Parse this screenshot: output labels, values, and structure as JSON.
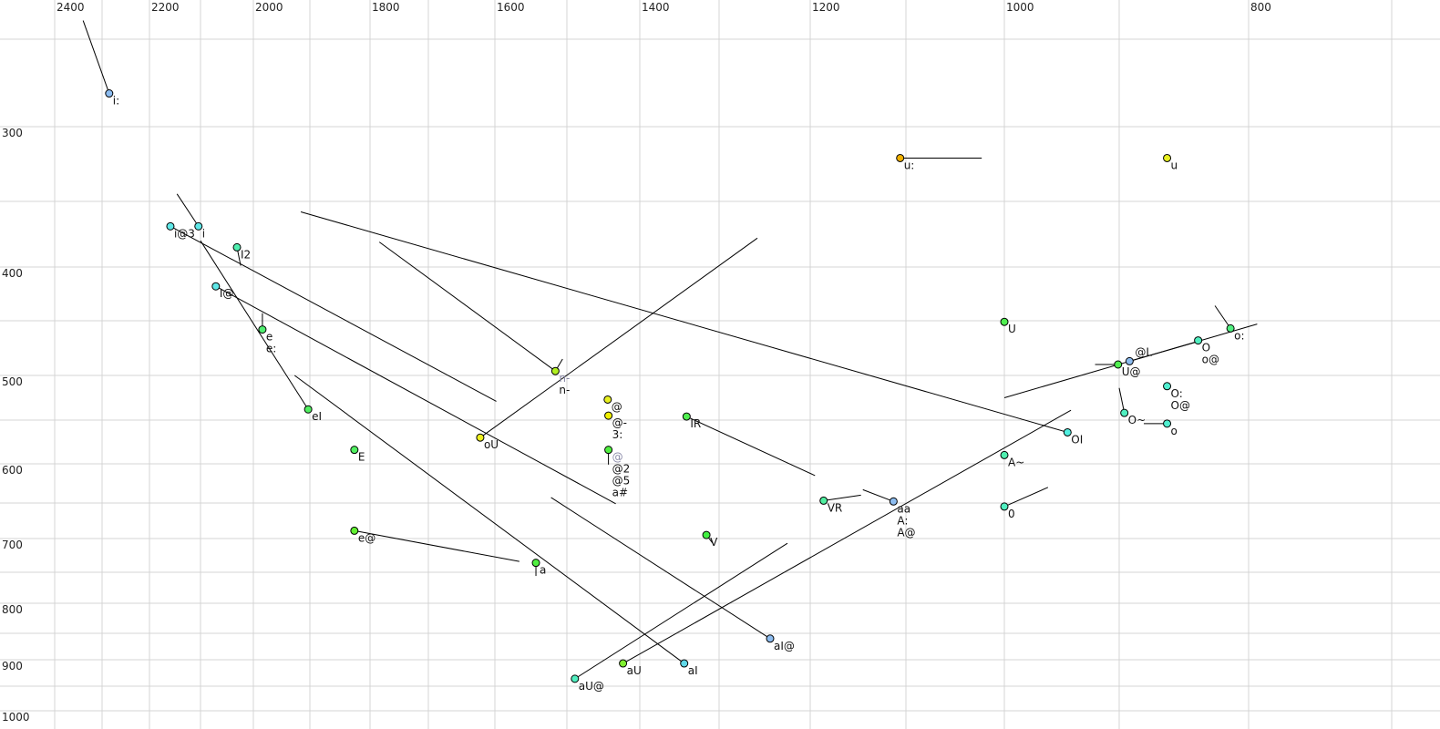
{
  "chart_data": {
    "type": "scatter",
    "title": "",
    "xlabel": "",
    "ylabel": "",
    "x_axis": {
      "ticks": [
        2400,
        2200,
        2000,
        1800,
        1600,
        1400,
        1200,
        1000,
        800
      ],
      "tick_labels": [
        "2400",
        "2200",
        "2000",
        "1800",
        "1600",
        "1400",
        "1200",
        "1000",
        "800"
      ],
      "range": [
        2400,
        700
      ],
      "reversed": true,
      "scale": "auditory (non-linear)",
      "position": "top",
      "minor_grid_step": 100
    },
    "y_axis": {
      "ticks": [
        300,
        400,
        500,
        600,
        700,
        800,
        900,
        1000
      ],
      "tick_labels": [
        "300",
        "400",
        "500",
        "600",
        "700",
        "800",
        "900",
        "1000"
      ],
      "range": [
        240,
        1000
      ],
      "reversed": true,
      "scale": "auditory (non-linear)",
      "minor_grid_step": 50
    },
    "grid": true,
    "legend": "none",
    "colors": {
      "light_blue": "#8cbcf0",
      "cyan": "#5fe8e8",
      "mint": "#50efb8",
      "green": "#50ef50",
      "yellow_green": "#b0ef20",
      "yellow": "#eef020",
      "orange": "#f0b000",
      "ghost_label": "#8a8aa8"
    },
    "points": [
      {
        "labels": [
          "i:"
        ],
        "f2": 2285,
        "f1": 281,
        "color": "#8cbcf0",
        "end": [
          2340,
          239
        ]
      },
      {
        "labels": [
          "i@3"
        ],
        "f2": 2159,
        "f1": 369,
        "color": "#5fe8e8",
        "end": [
          1598,
          529
        ]
      },
      {
        "labels": [
          "i"
        ],
        "f2": 2104,
        "f1": 369,
        "color": "#5fe8e8",
        "end": [
          2146,
          345
        ]
      },
      {
        "labels": [
          "I2"
        ],
        "f2": 2031,
        "f1": 385,
        "color": "#50efb0",
        "end": [
          2024,
          399
        ]
      },
      {
        "labels": [
          "I@"
        ],
        "f2": 2071,
        "f1": 418,
        "color": "#5fe8e8",
        "end": [
          1433,
          651
        ]
      },
      {
        "labels": [
          "e",
          "e:"
        ],
        "f2": 1984,
        "f1": 458,
        "color": "#50ef70",
        "end": [
          1984,
          443
        ]
      },
      {
        "labels": [
          "eI"
        ],
        "f2": 1903,
        "f1": 538,
        "color": "#50ef60",
        "end": [
          2100,
          380
        ]
      },
      {
        "labels": [
          "E"
        ],
        "f2": 1826,
        "f1": 584,
        "color": "#50ef60"
      },
      {
        "labels": [
          "e@"
        ],
        "f2": 1826,
        "f1": 689,
        "color": "#60ef30",
        "end": [
          1566,
          734
        ]
      },
      {
        "labels": [
          "a"
        ],
        "f2": 1543,
        "f1": 736,
        "color": "#50ef40",
        "end": [
          1543,
          756
        ]
      },
      {
        "labels": [
          "aI"
        ],
        "f2": 1344,
        "f1": 907,
        "color": "#60d8e8",
        "end": [
          1927,
          500
        ]
      },
      {
        "labels": [
          "aU"
        ],
        "f2": 1423,
        "f1": 907,
        "color": "#80ef30",
        "end": [
          942,
          539
        ]
      },
      {
        "labels": [
          "aU@"
        ],
        "f2": 1489,
        "f1": 936,
        "color": "#50efc0",
        "end": [
          1225,
          707
        ]
      },
      {
        "labels": [
          "aI@"
        ],
        "f2": 1244,
        "f1": 860,
        "color": "#8cbcf0",
        "end": [
          1522,
          643
        ]
      },
      {
        "labels": [
          "oU"
        ],
        "f2": 1622,
        "f1": 570,
        "color": "#eef020",
        "end": [
          1258,
          378
        ]
      },
      {
        "labels": [
          "n-"
        ],
        "ghost_label": "n-",
        "f2": 1516,
        "f1": 496,
        "color": "#b0ef20",
        "end": [
          1784,
          381
        ]
      },
      {
        "labels": [
          "@"
        ],
        "f2": 1444,
        "f1": 527,
        "color": "#e8f020"
      },
      {
        "labels": [
          "@-",
          "3:"
        ],
        "f2": 1443,
        "f1": 545,
        "color": "#f0f000"
      },
      {
        "labels": [
          "@2",
          "@5",
          "a#"
        ],
        "ghost_label": "@",
        "f2": 1443,
        "f1": 584,
        "color": "#50ef40",
        "end": [
          1443,
          601
        ]
      },
      {
        "labels": [
          "IR"
        ],
        "f2": 1341,
        "f1": 546,
        "color": "#50ef50",
        "end": [
          1195,
          615
        ]
      },
      {
        "labels": [
          "V"
        ],
        "f2": 1316,
        "f1": 695,
        "color": "#40ef40",
        "end": [
          1308,
          707
        ]
      },
      {
        "labels": [
          "VR"
        ],
        "f2": 1186,
        "f1": 647,
        "color": "#50efa0",
        "end": [
          1147,
          640
        ]
      },
      {
        "labels": [
          "aa",
          "A:",
          "A@"
        ],
        "f2": 1113,
        "f1": 648,
        "color": "#8cbcf0",
        "end": [
          1145,
          633
        ]
      },
      {
        "labels": [
          "0"
        ],
        "f2": 1000,
        "f1": 655,
        "color": "#50efc0",
        "end": [
          962,
          630
        ]
      },
      {
        "labels": [
          "A~"
        ],
        "f2": 1000,
        "f1": 590,
        "color": "#50efb0"
      },
      {
        "labels": [
          "OI"
        ],
        "f2": 945,
        "f1": 564,
        "color": "#50efe0",
        "end": [
          1916,
          358
        ]
      },
      {
        "labels": [
          "U"
        ],
        "f2": 1000,
        "f1": 451,
        "color": "#50ef50"
      },
      {
        "labels": [
          "u"
        ],
        "f2": 863,
        "f1": 321,
        "color": "#e8f020"
      },
      {
        "labels": [
          "u:"
        ],
        "f2": 1106,
        "f1": 321,
        "color": "#f0b000",
        "end": [
          1023,
          321
        ]
      },
      {
        "labels": [
          "U@"
        ],
        "f2": 901,
        "f1": 490,
        "color": "#50ef50",
        "end": [
          921,
          490
        ]
      },
      {
        "labels": [
          "@L"
        ],
        "f2": 892,
        "f1": 487,
        "color": "#8cbcf0",
        "end": [
          839,
          469
        ]
      },
      {
        "labels": [
          "O",
          "o@"
        ],
        "f2": 839,
        "f1": 468,
        "color": "#50efc0"
      },
      {
        "labels": [
          "o:"
        ],
        "f2": 814,
        "f1": 457,
        "color": "#50ef80",
        "end": [
          826,
          436
        ]
      },
      {
        "labels": [
          "O:",
          "O@"
        ],
        "f2": 863,
        "f1": 512,
        "color": "#50efd0"
      },
      {
        "labels": [
          "O~"
        ],
        "f2": 896,
        "f1": 542,
        "color": "#50efc0",
        "end": [
          900,
          514
        ]
      },
      {
        "labels": [
          "o"
        ],
        "f2": 863,
        "f1": 554,
        "color": "#50efd0",
        "end": [
          881,
          554
        ]
      }
    ],
    "extra_trajectories": [
      {
        "from": [
          1000,
          525
        ],
        "to": [
          794,
          453
        ]
      },
      {
        "from": [
          1516,
          496
        ],
        "to": [
          1506,
          485
        ]
      }
    ]
  }
}
